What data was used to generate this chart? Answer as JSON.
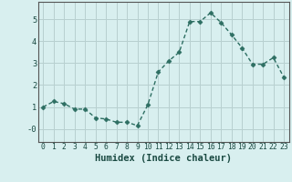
{
  "x": [
    0,
    1,
    2,
    3,
    4,
    5,
    6,
    7,
    8,
    9,
    10,
    11,
    12,
    13,
    14,
    15,
    16,
    17,
    18,
    19,
    20,
    21,
    22,
    23
  ],
  "y": [
    1.0,
    1.25,
    1.15,
    0.9,
    0.9,
    0.5,
    0.45,
    0.3,
    0.3,
    0.15,
    1.1,
    2.6,
    3.1,
    3.5,
    4.9,
    4.9,
    5.3,
    4.85,
    4.3,
    3.7,
    2.95,
    2.95,
    3.25,
    2.35
  ],
  "line_color": "#2d6e62",
  "marker": "D",
  "markersize": 2.5,
  "linewidth": 1.0,
  "xlabel": "Humidex (Indice chaleur)",
  "xlabel_fontsize": 7.5,
  "bg_color": "#d8efef",
  "grid_color": "#b8d0d0",
  "ylim": [
    -0.6,
    5.8
  ],
  "xlim": [
    -0.5,
    23.5
  ],
  "ytick_labels": [
    "-0",
    "1",
    "2",
    "3",
    "4",
    "5"
  ],
  "ytick_vals": [
    0,
    1,
    2,
    3,
    4,
    5
  ],
  "xtick_labels": [
    "0",
    "1",
    "2",
    "3",
    "4",
    "5",
    "6",
    "7",
    "8",
    "9",
    "10",
    "11",
    "12",
    "13",
    "14",
    "15",
    "16",
    "17",
    "18",
    "19",
    "20",
    "21",
    "22",
    "23"
  ],
  "tick_fontsize": 5.8,
  "ylabel_fontsize": 6.5,
  "spine_color": "#555555"
}
